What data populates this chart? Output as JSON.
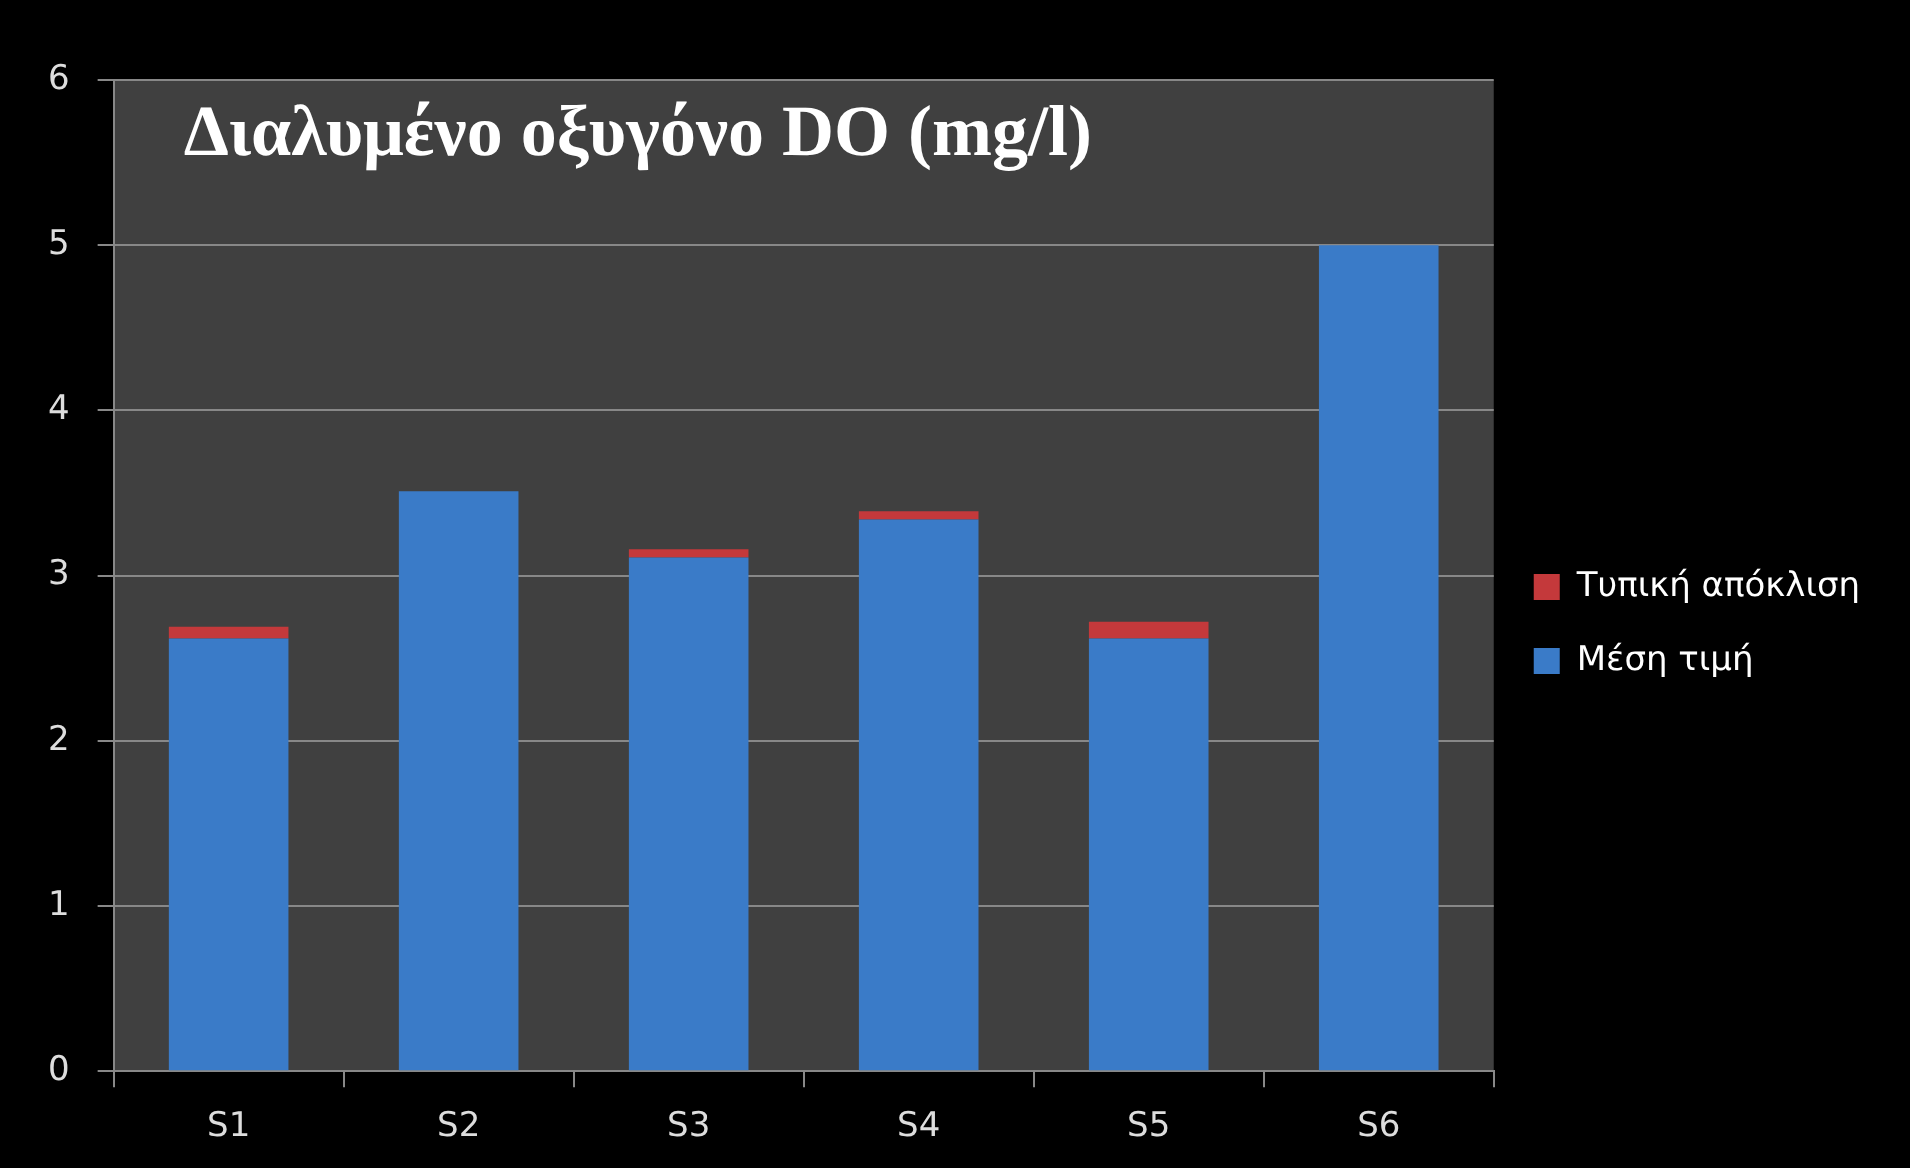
{
  "chart_data": {
    "type": "bar",
    "title": "Διαλυμένο οξυγόνο DO (mg/l)",
    "categories": [
      "S1",
      "S2",
      "S3",
      "S4",
      "S5",
      "S6"
    ],
    "stacked": true,
    "series": [
      {
        "name": "Μέση τιμή",
        "color": "#3a7bc8",
        "values": [
          2.62,
          3.51,
          3.11,
          3.34,
          2.62,
          5.0
        ]
      },
      {
        "name": "Τυπική απόκλιση",
        "color": "#c4393b",
        "values": [
          0.07,
          0,
          0.05,
          0.05,
          0.1,
          0
        ]
      }
    ],
    "ylim": [
      0,
      6
    ],
    "yticks": [
      0,
      1,
      2,
      3,
      4,
      5,
      6
    ],
    "grid": "y",
    "legend": "right"
  }
}
